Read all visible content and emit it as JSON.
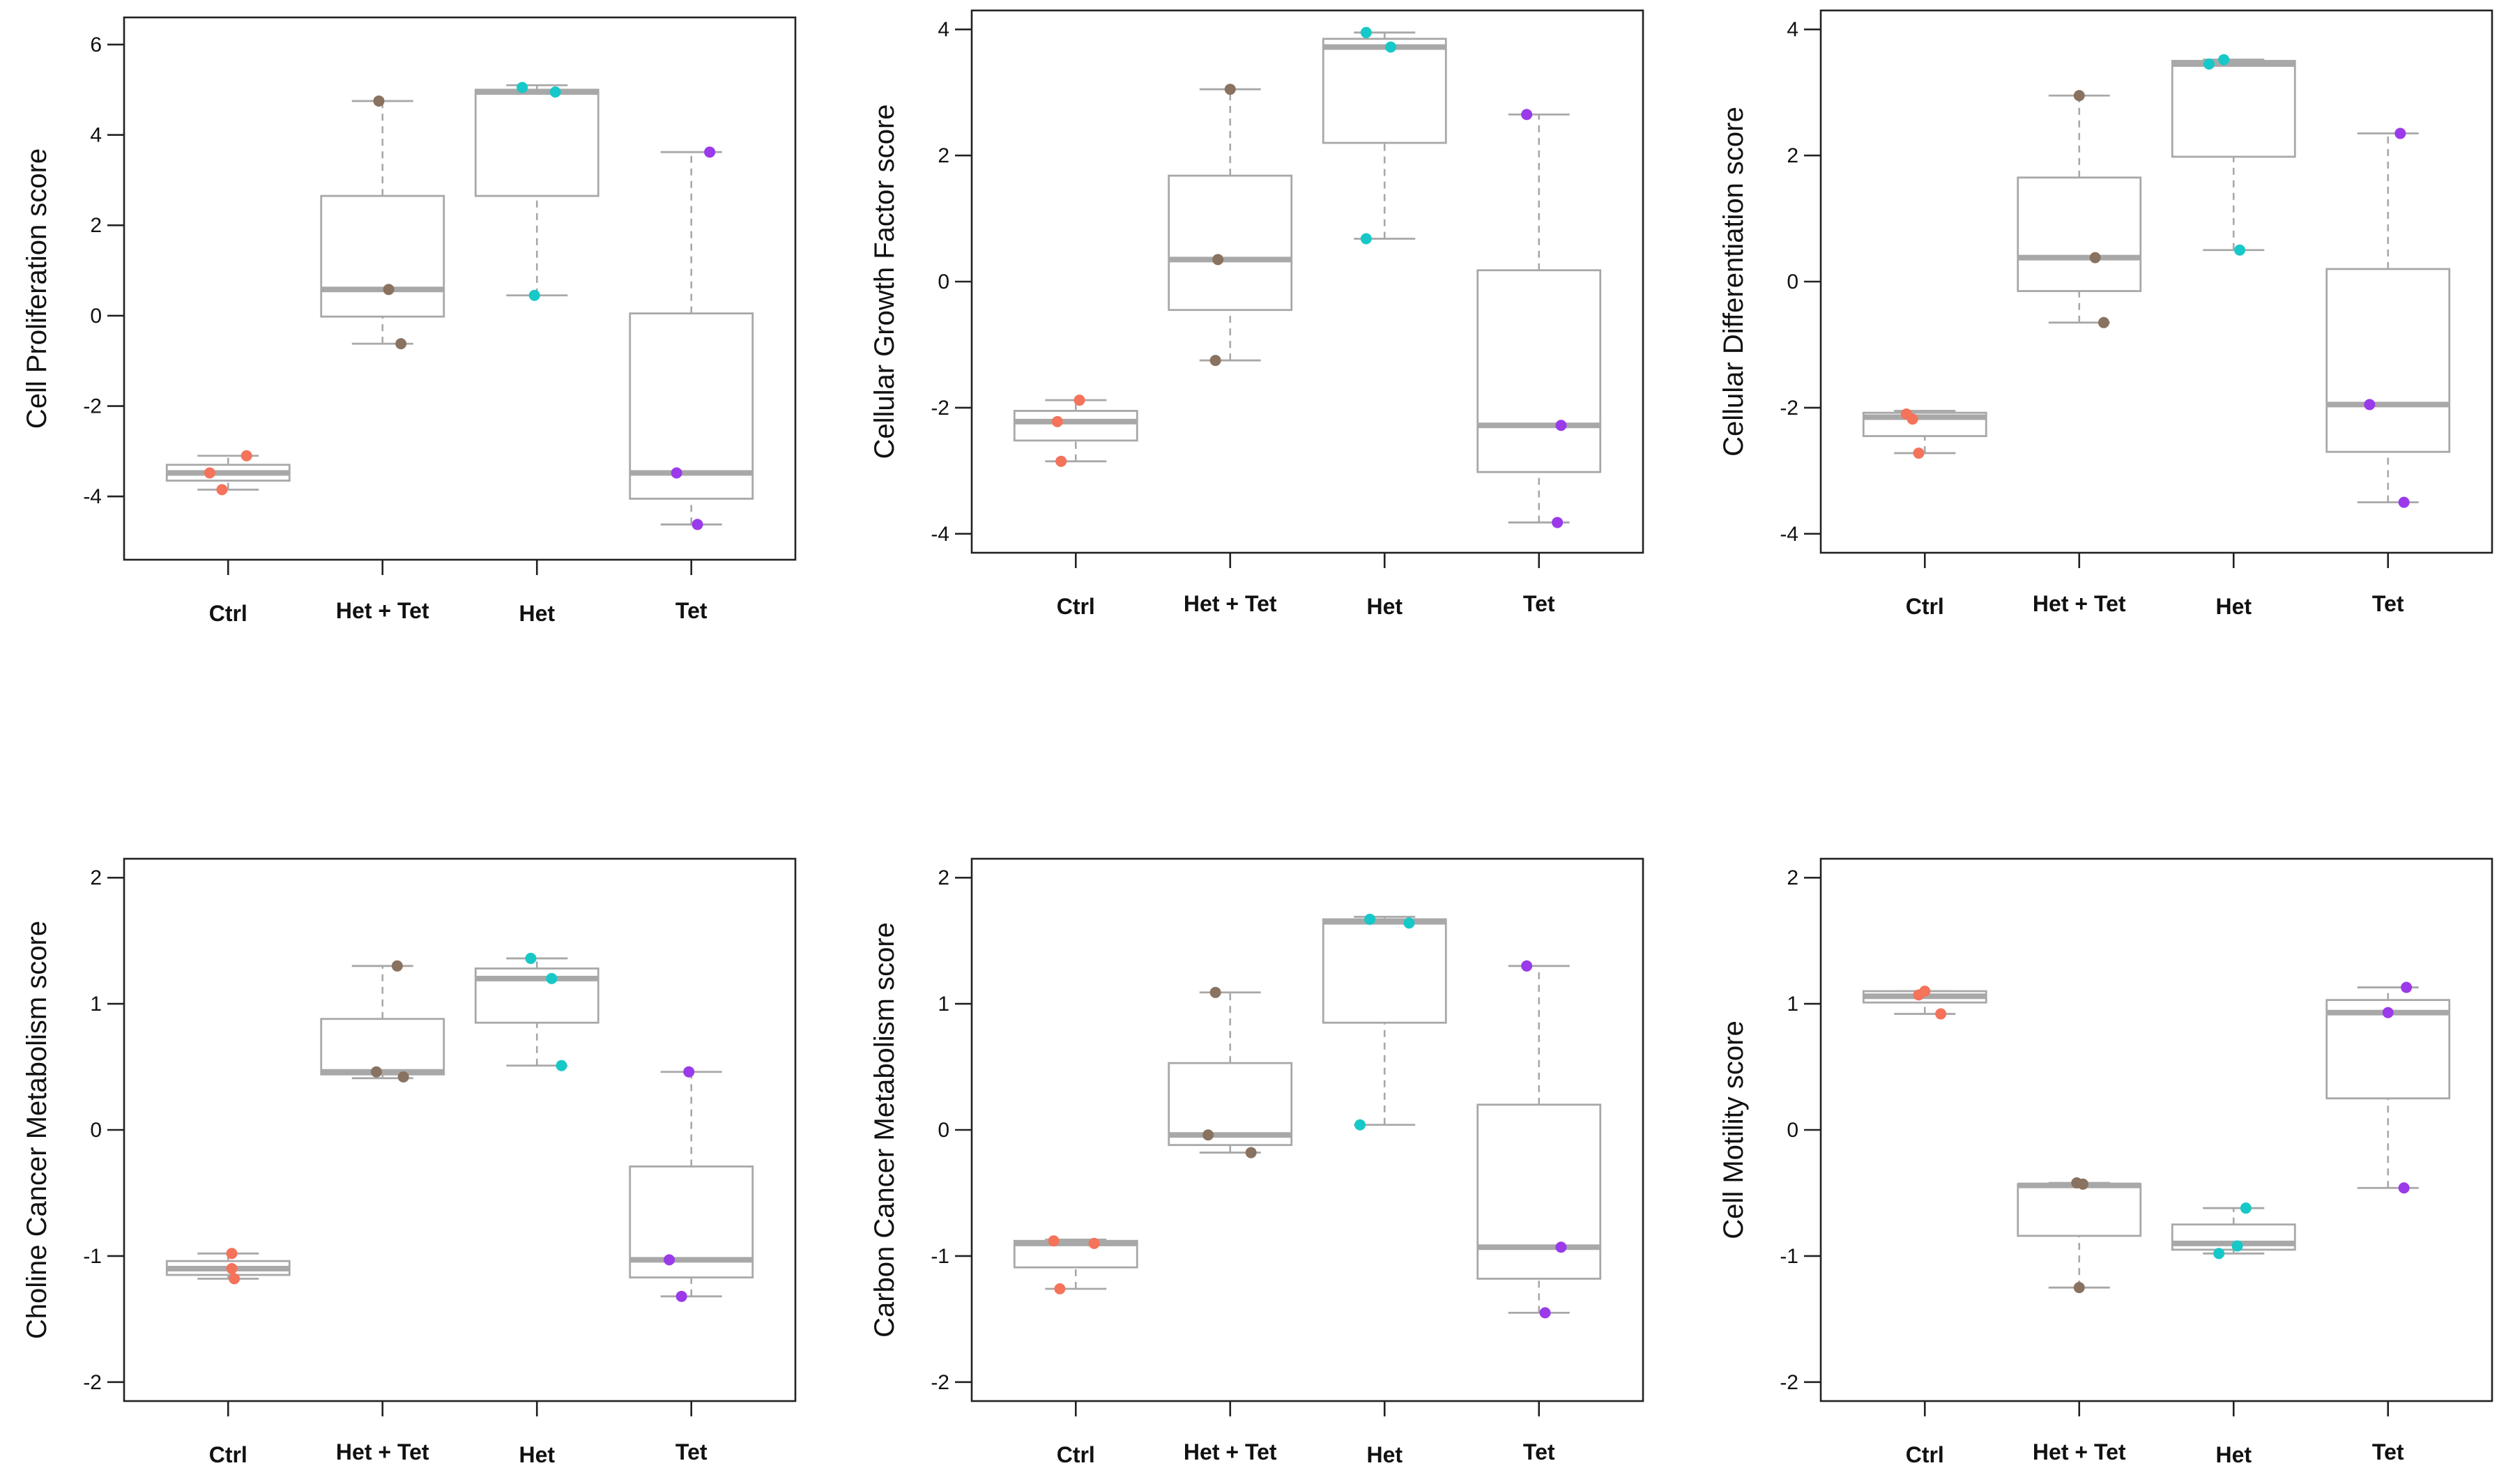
{
  "colors": {
    "Ctrl": "#f4735a",
    "Het + Tet": "#8a7260",
    "Het": "#17c8c8",
    "Tet": "#9a3aea"
  },
  "chart_data": [
    {
      "type": "box",
      "title": "",
      "ylabel": "Cell Proliferation score",
      "ylim": [
        -5.4,
        6.6
      ],
      "yticks": [
        -4,
        -2,
        0,
        2,
        4,
        6
      ],
      "categories": [
        "Ctrl",
        "Het + Tet",
        "Het",
        "Tet"
      ],
      "boxes": [
        {
          "q1": -3.65,
          "median": -3.48,
          "q3": -3.3,
          "wmin": -3.85,
          "wmax": -3.1
        },
        {
          "q1": -0.02,
          "median": 0.58,
          "q3": 2.65,
          "wmin": -0.62,
          "wmax": 4.75
        },
        {
          "q1": 2.65,
          "median": 4.95,
          "q3": 5.0,
          "wmin": 0.45,
          "wmax": 5.1
        },
        {
          "q1": -4.05,
          "median": -3.48,
          "q3": 0.05,
          "wmin": -4.62,
          "wmax": 3.62
        }
      ],
      "points": [
        [
          [
            -3.48,
            -0.15
          ],
          [
            -3.1,
            0.15
          ],
          [
            -3.85,
            -0.05
          ]
        ],
        [
          [
            4.75,
            -0.03
          ],
          [
            0.58,
            0.05
          ],
          [
            -0.62,
            0.15
          ]
        ],
        [
          [
            5.05,
            -0.12
          ],
          [
            4.95,
            0.15
          ],
          [
            0.45,
            -0.02
          ]
        ],
        [
          [
            3.62,
            0.15
          ],
          [
            -3.48,
            -0.12
          ],
          [
            -4.62,
            0.05
          ]
        ]
      ]
    },
    {
      "type": "box",
      "title": "",
      "ylabel": "Cellular Growth Factor score",
      "ylim": [
        -4.3,
        4.3
      ],
      "yticks": [
        -4,
        -2,
        0,
        2,
        4
      ],
      "categories": [
        "Ctrl",
        "Het + Tet",
        "Het",
        "Tet"
      ],
      "boxes": [
        {
          "q1": -2.52,
          "median": -2.22,
          "q3": -2.05,
          "wmin": -2.85,
          "wmax": -1.88
        },
        {
          "q1": -0.45,
          "median": 0.35,
          "q3": 1.68,
          "wmin": -1.25,
          "wmax": 3.05
        },
        {
          "q1": 2.2,
          "median": 3.72,
          "q3": 3.85,
          "wmin": 0.68,
          "wmax": 3.95
        },
        {
          "q1": -3.02,
          "median": -2.28,
          "q3": 0.18,
          "wmin": -3.82,
          "wmax": 2.65
        }
      ],
      "points": [
        [
          [
            -2.22,
            -0.15
          ],
          [
            -1.88,
            0.03
          ],
          [
            -2.85,
            -0.12
          ]
        ],
        [
          [
            3.05,
            0.0
          ],
          [
            0.35,
            -0.1
          ],
          [
            -1.25,
            -0.12
          ]
        ],
        [
          [
            3.95,
            -0.15
          ],
          [
            3.72,
            0.05
          ],
          [
            0.68,
            -0.15
          ]
        ],
        [
          [
            2.65,
            -0.1
          ],
          [
            -2.28,
            0.18
          ],
          [
            -3.82,
            0.15
          ]
        ]
      ]
    },
    {
      "type": "box",
      "title": "",
      "ylabel": "Cellular Differentiation score",
      "ylim": [
        -4.3,
        4.3
      ],
      "yticks": [
        -4,
        -2,
        0,
        2,
        4
      ],
      "categories": [
        "Ctrl",
        "Het + Tet",
        "Het",
        "Tet"
      ],
      "boxes": [
        {
          "q1": -2.45,
          "median": -2.15,
          "q3": -2.08,
          "wmin": -2.72,
          "wmax": -2.05
        },
        {
          "q1": -0.15,
          "median": 0.38,
          "q3": 1.65,
          "wmin": -0.65,
          "wmax": 2.95
        },
        {
          "q1": 1.98,
          "median": 3.45,
          "q3": 3.5,
          "wmin": 0.5,
          "wmax": 3.52
        },
        {
          "q1": -2.7,
          "median": -1.95,
          "q3": 0.2,
          "wmin": -3.5,
          "wmax": 2.35
        }
      ],
      "points": [
        [
          [
            -2.1,
            -0.15
          ],
          [
            -2.18,
            -0.1
          ],
          [
            -2.72,
            -0.05
          ]
        ],
        [
          [
            2.95,
            0.0
          ],
          [
            0.38,
            0.13
          ],
          [
            -0.65,
            0.2
          ]
        ],
        [
          [
            3.45,
            -0.2
          ],
          [
            3.52,
            -0.08
          ],
          [
            0.5,
            0.05
          ]
        ],
        [
          [
            2.35,
            0.1
          ],
          [
            -1.95,
            -0.15
          ],
          [
            -3.5,
            0.13
          ]
        ]
      ]
    },
    {
      "type": "box",
      "title": "",
      "ylabel": "Choline Cancer Metabolism score",
      "ylim": [
        -2.15,
        2.15
      ],
      "yticks": [
        -2,
        -1,
        0,
        1,
        2
      ],
      "categories": [
        "Ctrl",
        "Het + Tet",
        "Het",
        "Tet"
      ],
      "boxes": [
        {
          "q1": -1.15,
          "median": -1.1,
          "q3": -1.04,
          "wmin": -1.18,
          "wmax": -0.98
        },
        {
          "q1": 0.44,
          "median": 0.46,
          "q3": 0.88,
          "wmin": 0.41,
          "wmax": 1.3
        },
        {
          "q1": 0.85,
          "median": 1.2,
          "q3": 1.28,
          "wmin": 0.51,
          "wmax": 1.36
        },
        {
          "q1": -1.17,
          "median": -1.03,
          "q3": -0.29,
          "wmin": -1.32,
          "wmax": 0.46
        }
      ],
      "points": [
        [
          [
            -0.98,
            0.03
          ],
          [
            -1.1,
            0.03
          ],
          [
            -1.18,
            0.05
          ]
        ],
        [
          [
            1.3,
            0.12
          ],
          [
            0.46,
            -0.05
          ],
          [
            0.42,
            0.17
          ]
        ],
        [
          [
            1.36,
            -0.05
          ],
          [
            1.2,
            0.12
          ],
          [
            0.51,
            0.2
          ]
        ],
        [
          [
            0.46,
            -0.02
          ],
          [
            -1.03,
            -0.18
          ],
          [
            -1.32,
            -0.08
          ]
        ]
      ]
    },
    {
      "type": "box",
      "title": "",
      "ylabel": "Carbon Cancer Metabolism score",
      "ylim": [
        -2.15,
        2.15
      ],
      "yticks": [
        -2,
        -1,
        0,
        1,
        2
      ],
      "categories": [
        "Ctrl",
        "Het + Tet",
        "Het",
        "Tet"
      ],
      "boxes": [
        {
          "q1": -1.09,
          "median": -0.9,
          "q3": -0.88,
          "wmin": -1.26,
          "wmax": -0.87
        },
        {
          "q1": -0.12,
          "median": -0.04,
          "q3": 0.53,
          "wmin": -0.18,
          "wmax": 1.09
        },
        {
          "q1": 0.85,
          "median": 1.65,
          "q3": 1.67,
          "wmin": 0.04,
          "wmax": 1.69
        },
        {
          "q1": -1.18,
          "median": -0.93,
          "q3": 0.2,
          "wmin": -1.45,
          "wmax": 1.3
        }
      ],
      "points": [
        [
          [
            -0.88,
            -0.18
          ],
          [
            -0.9,
            0.15
          ],
          [
            -1.26,
            -0.13
          ]
        ],
        [
          [
            1.09,
            -0.12
          ],
          [
            -0.04,
            -0.18
          ],
          [
            -0.18,
            0.17
          ]
        ],
        [
          [
            1.67,
            -0.12
          ],
          [
            1.64,
            0.2
          ],
          [
            0.04,
            -0.2
          ]
        ],
        [
          [
            1.3,
            -0.1
          ],
          [
            -0.93,
            0.18
          ],
          [
            -1.45,
            0.05
          ]
        ]
      ]
    },
    {
      "type": "box",
      "title": "",
      "ylabel": "Cell Motility score",
      "ylim": [
        -2.15,
        2.15
      ],
      "yticks": [
        -2,
        -1,
        0,
        1,
        2
      ],
      "categories": [
        "Ctrl",
        "Het + Tet",
        "Het",
        "Tet"
      ],
      "boxes": [
        {
          "q1": 1.01,
          "median": 1.06,
          "q3": 1.1,
          "wmin": 0.92,
          "wmax": 1.1
        },
        {
          "q1": -0.84,
          "median": -0.44,
          "q3": -0.43,
          "wmin": -1.25,
          "wmax": -0.42
        },
        {
          "q1": -0.95,
          "median": -0.9,
          "q3": -0.75,
          "wmin": -0.98,
          "wmax": -0.62
        },
        {
          "q1": 0.25,
          "median": 0.93,
          "q3": 1.03,
          "wmin": -0.46,
          "wmax": 1.13
        }
      ],
      "points": [
        [
          [
            1.07,
            -0.05
          ],
          [
            1.1,
            0.0
          ],
          [
            0.92,
            0.13
          ]
        ],
        [
          [
            -0.42,
            -0.02
          ],
          [
            -0.43,
            0.03
          ],
          [
            -1.25,
            0.0
          ]
        ],
        [
          [
            -0.98,
            -0.12
          ],
          [
            -0.92,
            0.03
          ],
          [
            -0.62,
            0.1
          ]
        ],
        [
          [
            1.13,
            0.15
          ],
          [
            0.93,
            0.0
          ],
          [
            -0.46,
            0.13
          ]
        ]
      ]
    }
  ]
}
